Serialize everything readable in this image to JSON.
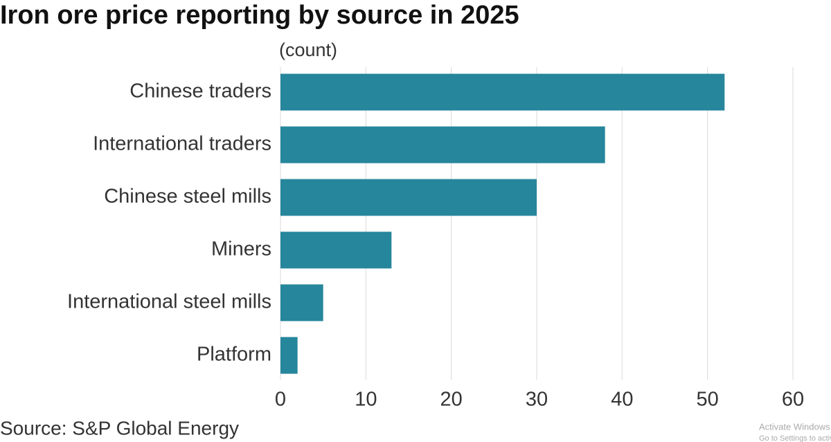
{
  "chart_data": {
    "type": "bar",
    "orientation": "horizontal",
    "title": "Iron ore price reporting by source in 2025",
    "subtitle": "(count)",
    "source": "Source: S&P Global Energy",
    "categories": [
      "Chinese traders",
      "International traders",
      "Chinese steel mills",
      "Miners",
      "International steel mills",
      "Platform"
    ],
    "values": [
      52,
      38,
      30,
      13,
      5,
      2
    ],
    "color": "#26869b",
    "xlim": [
      0,
      60
    ],
    "xticks": [
      0,
      10,
      20,
      30,
      40,
      50,
      60
    ],
    "grid": true
  },
  "watermark": {
    "line1": "Activate Windows",
    "line2": "Go to Settings to activate Windows."
  }
}
